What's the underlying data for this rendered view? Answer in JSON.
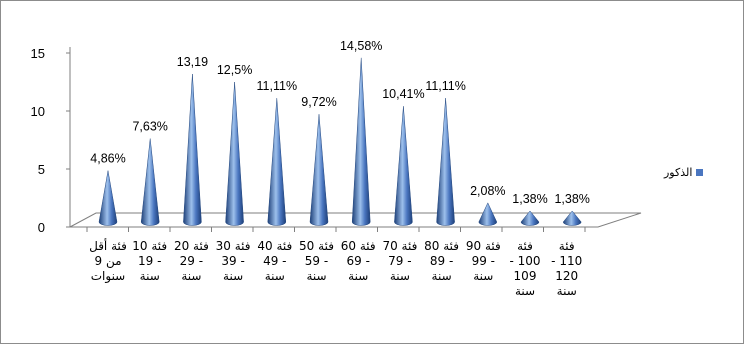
{
  "chart_data": {
    "type": "bar",
    "mark": "cone",
    "categories": [
      "فئة أقل من 9 سنوات",
      "فئة 10 - 19 سنة",
      "فئة 20 - 29 سنة",
      "فئة 30 - 39 سنة",
      "فئة 40 - 49 سنة",
      "فئة 50 - 59 سنة",
      "فئة 60 - 69 سنة",
      "فئة 70 - 79 سنة",
      "فئة 80 - 89 سنة",
      "فئة 90 - 99 سنة",
      "فئة 100 - 109 سنة",
      "فئة 110 - 120 سنة"
    ],
    "category_lines": [
      [
        "فئة أقل",
        "من 9",
        "سنوات"
      ],
      [
        "فئة 10",
        "- 19",
        "سنة"
      ],
      [
        "فئة 20",
        "- 29",
        "سنة"
      ],
      [
        "فئة 30",
        "- 39",
        "سنة"
      ],
      [
        "فئة 40",
        "- 49",
        "سنة"
      ],
      [
        "فئة 50",
        "- 59",
        "سنة"
      ],
      [
        "فئة 60",
        "- 69",
        "سنة"
      ],
      [
        "فئة 70",
        "- 79",
        "سنة"
      ],
      [
        "فئة 80",
        "- 89",
        "سنة"
      ],
      [
        "فئة 90",
        "- 99",
        "سنة"
      ],
      [
        "فئة",
        "100 -",
        "109",
        "سنة"
      ],
      [
        "فئة",
        "110 -",
        "120",
        "سنة"
      ]
    ],
    "series": [
      {
        "name": "الذكور",
        "values": [
          4.86,
          7.63,
          13.19,
          12.5,
          11.11,
          9.72,
          14.58,
          10.41,
          11.11,
          2.08,
          1.38,
          1.38
        ],
        "labels": [
          "4,86%",
          "7,63%",
          "13,19",
          "12,5%",
          "11,11%",
          "9,72%",
          "14,58%",
          "10,41%",
          "11,11%",
          "2,08%",
          "1,38%",
          "1,38%"
        ]
      }
    ],
    "ylim": [
      0,
      15
    ],
    "yticks": [
      "0",
      "5",
      "10",
      "15"
    ],
    "legend_position": "right",
    "colors": {
      "cone_light": "#9dc0ec",
      "cone_mid": "#4a76c0",
      "cone_dark": "#1d3f78",
      "legend": "#4a76c0"
    },
    "grid": false
  }
}
